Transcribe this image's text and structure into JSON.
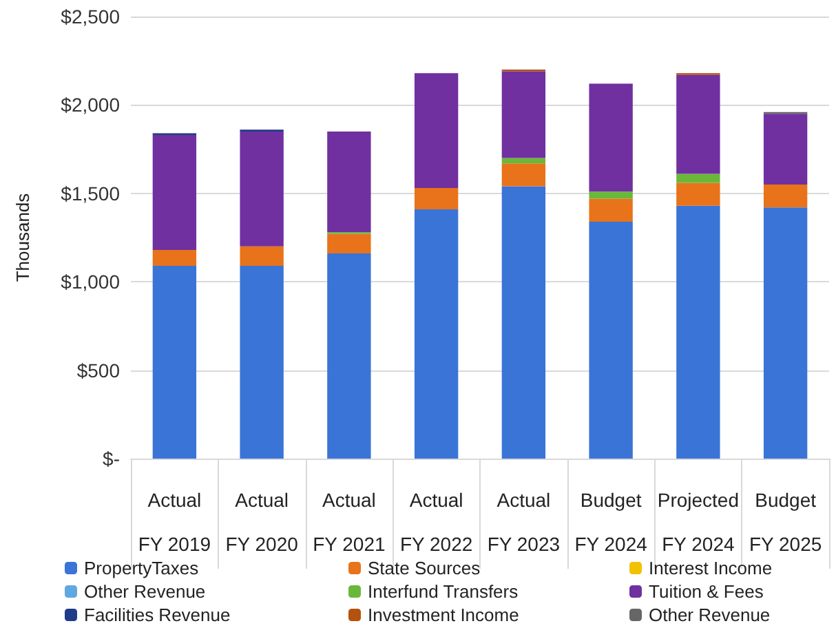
{
  "chart_data": {
    "type": "bar",
    "stacked": true,
    "ylabel": "Thousands",
    "categories": [
      "Actual\nFY 2019",
      "Actual\nFY 2020",
      "Actual\nFY 2021",
      "Actual\nFY 2022",
      "Actual\nFY 2023",
      "Budget\nFY 2024",
      "Projected\nFY 2024",
      "Budget\nFY 2025"
    ],
    "series": [
      {
        "name": "PropertyTaxes",
        "color": "#3a74d6",
        "values": [
          1090,
          1090,
          1160,
          1410,
          1540,
          1340,
          1430,
          1420
        ]
      },
      {
        "name": "State Sources",
        "color": "#e8731a",
        "values": [
          90,
          110,
          110,
          120,
          130,
          130,
          130,
          130
        ]
      },
      {
        "name": "Interest Income",
        "color": "#f2c200",
        "values": [
          0,
          0,
          0,
          0,
          0,
          0,
          0,
          0
        ]
      },
      {
        "name": "Other Revenue",
        "color": "#5fa8e0",
        "values": [
          0,
          0,
          0,
          0,
          0,
          0,
          0,
          0
        ]
      },
      {
        "name": "Interfund Transfers",
        "color": "#6ab83a",
        "values": [
          0,
          0,
          10,
          0,
          30,
          40,
          50,
          0
        ]
      },
      {
        "name": "Tuition & Fees",
        "color": "#7030a0",
        "values": [
          650,
          650,
          570,
          650,
          490,
          610,
          560,
          400
        ]
      },
      {
        "name": "Facilities Revenue",
        "color": "#1f3c88",
        "values": [
          10,
          10,
          0,
          0,
          0,
          0,
          0,
          0
        ]
      },
      {
        "name": "Investment Income",
        "color": "#b5520f",
        "values": [
          0,
          0,
          0,
          0,
          10,
          0,
          10,
          0
        ]
      },
      {
        "name": "Other Revenue",
        "color": "#666666",
        "values": [
          0,
          0,
          0,
          0,
          0,
          0,
          0,
          10
        ]
      }
    ],
    "ylim": [
      0,
      2500
    ],
    "yticks": [
      {
        "value": 0,
        "label": "$-"
      },
      {
        "value": 500,
        "label": "$500"
      },
      {
        "value": 1000,
        "label": "$1,000"
      },
      {
        "value": 1500,
        "label": "$1,500"
      },
      {
        "value": 2000,
        "label": "$2,000"
      },
      {
        "value": 2500,
        "label": "$2,500"
      }
    ],
    "grid": "y",
    "legend": "bottom"
  }
}
